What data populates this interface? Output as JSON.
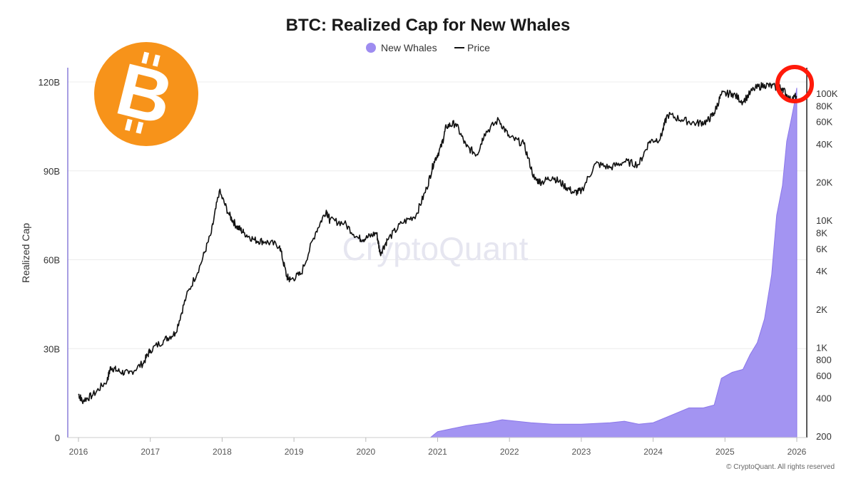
{
  "chart_data": {
    "type": "area+line",
    "title": "BTC: Realized Cap for New Whales",
    "watermark": "CryptoQuant",
    "copyright": "© CryptoQuant. All rights reserved",
    "ylabel": "Realized Cap",
    "legend": [
      {
        "name": "New Whales",
        "marker": "dot",
        "color": "#9e8cf0"
      },
      {
        "name": "Price",
        "marker": "line",
        "color": "#111111"
      }
    ],
    "left_axis": {
      "ticks": [
        0,
        30,
        60,
        90,
        120
      ],
      "tick_labels": [
        "0",
        "30B",
        "60B",
        "90B",
        "120B"
      ],
      "range": [
        0,
        120
      ],
      "unit": "B"
    },
    "right_axis": {
      "scale": "log",
      "ticks": [
        200,
        400,
        600,
        800,
        1000,
        2000,
        4000,
        6000,
        8000,
        10000,
        20000,
        40000,
        60000,
        80000,
        100000
      ],
      "tick_labels": [
        "200",
        "400",
        "600",
        "800",
        "1K",
        "2K",
        "4K",
        "6K",
        "8K",
        "10K",
        "20K",
        "40K",
        "60K",
        "80K",
        "100K"
      ]
    },
    "x_axis": {
      "range": [
        2016,
        2026
      ],
      "ticks": [
        2016,
        2017,
        2018,
        2019,
        2020,
        2021,
        2022,
        2023,
        2024,
        2025,
        2026
      ],
      "tick_labels": [
        "2016",
        "2017",
        "2018",
        "2019",
        "2020",
        "2021",
        "2022",
        "2023",
        "2024",
        "2025",
        "2026"
      ]
    },
    "series": [
      {
        "name": "New Whales",
        "type": "area",
        "color": "#9e8cf0",
        "x": [
          2016.0,
          2020.9,
          2021.0,
          2021.4,
          2021.7,
          2021.9,
          2022.3,
          2022.6,
          2023.0,
          2023.4,
          2023.6,
          2023.8,
          2024.0,
          2024.2,
          2024.5,
          2024.7,
          2024.85,
          2024.95,
          2025.1,
          2025.25,
          2025.35,
          2025.45,
          2025.55,
          2025.65,
          2025.72,
          2025.8,
          2025.86,
          2025.92,
          2025.96,
          2026.0
        ],
        "values": [
          0,
          0,
          2,
          4,
          5,
          6,
          5,
          4.5,
          4.5,
          5,
          5.5,
          4.5,
          5,
          7,
          10,
          10,
          11,
          20,
          22,
          23,
          28,
          32,
          40,
          55,
          75,
          85,
          100,
          107,
          112,
          118
        ]
      },
      {
        "name": "Price",
        "type": "line",
        "axis": "right",
        "color": "#111111",
        "x": [
          2016.0,
          2016.05,
          2016.2,
          2016.4,
          2016.45,
          2016.55,
          2016.7,
          2016.9,
          2017.0,
          2017.2,
          2017.35,
          2017.5,
          2017.7,
          2017.85,
          2017.96,
          2018.1,
          2018.2,
          2018.3,
          2018.45,
          2018.6,
          2018.8,
          2018.9,
          2018.95,
          2019.1,
          2019.3,
          2019.45,
          2019.5,
          2019.7,
          2019.9,
          2020.0,
          2020.15,
          2020.2,
          2020.3,
          2020.5,
          2020.7,
          2020.85,
          2020.95,
          2021.05,
          2021.12,
          2021.25,
          2021.4,
          2021.55,
          2021.65,
          2021.85,
          2022.0,
          2022.2,
          2022.35,
          2022.45,
          2022.6,
          2022.75,
          2022.9,
          2023.0,
          2023.2,
          2023.4,
          2023.6,
          2023.8,
          2023.95,
          2024.1,
          2024.2,
          2024.4,
          2024.6,
          2024.75,
          2024.85,
          2024.95,
          2025.1,
          2025.25,
          2025.4,
          2025.55,
          2025.7,
          2025.8,
          2025.9,
          2026.0
        ],
        "values": [
          430,
          380,
          420,
          550,
          700,
          650,
          620,
          750,
          950,
          1150,
          1300,
          2500,
          4500,
          8000,
          17000,
          11000,
          9000,
          8000,
          7000,
          6800,
          6300,
          3600,
          3400,
          3800,
          8000,
          12000,
          10000,
          9500,
          7200,
          7200,
          8000,
          5500,
          7000,
          9500,
          11000,
          18000,
          29000,
          38000,
          55000,
          58000,
          38000,
          33000,
          48000,
          62000,
          45000,
          40000,
          21000,
          20000,
          22000,
          19000,
          16500,
          17000,
          28000,
          26000,
          29000,
          27500,
          42000,
          44000,
          68000,
          62000,
          58000,
          60000,
          70000,
          98000,
          100000,
          86000,
          108000,
          117000,
          112000,
          110000,
          89000,
          95000
        ]
      }
    ]
  }
}
